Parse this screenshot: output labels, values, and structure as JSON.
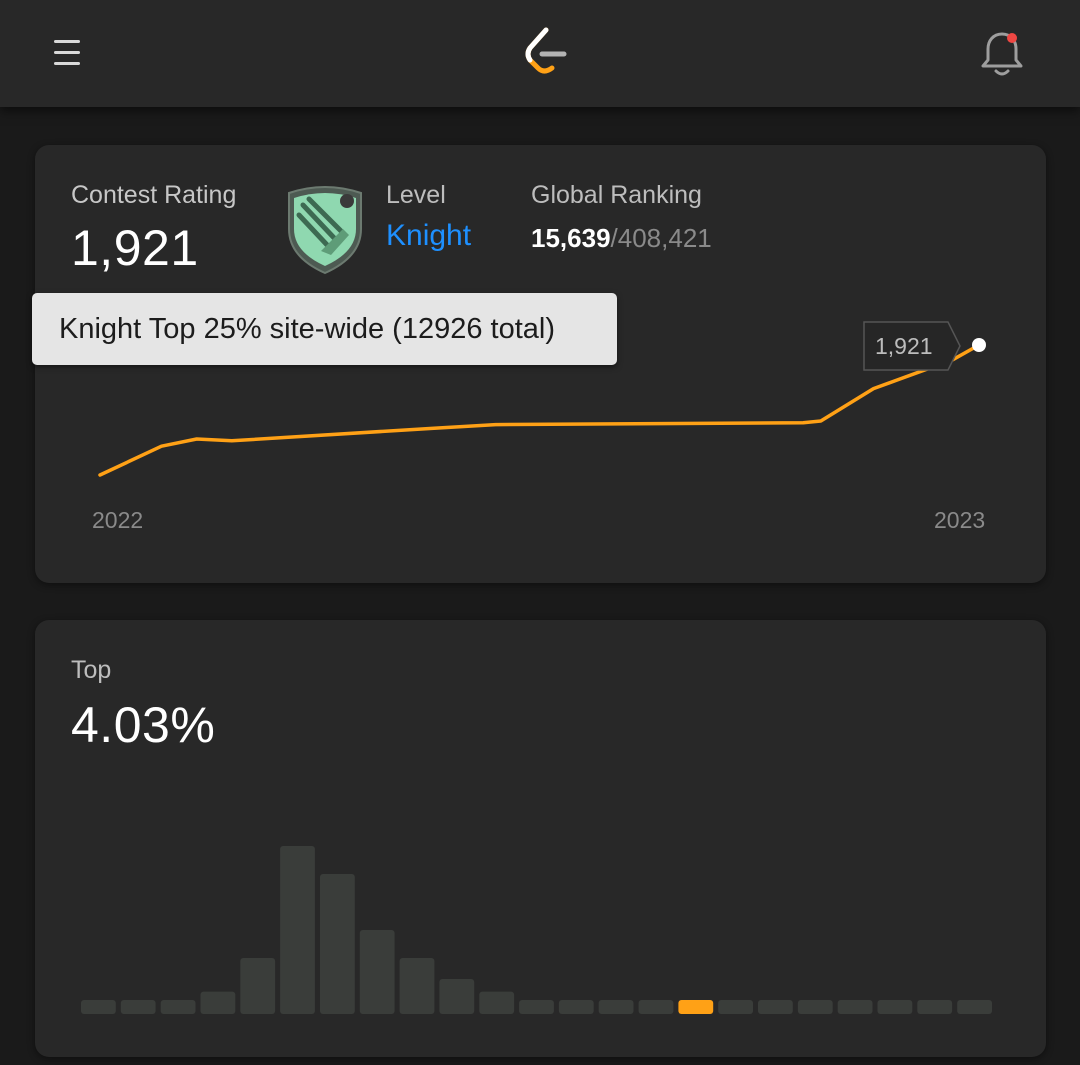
{
  "colors": {
    "accent": "#ffa116",
    "level": "#1e90ff",
    "bar_default": "#3a3d3a",
    "notification_dot": "#ef4743"
  },
  "header": {
    "menu_icon": "hamburger-menu-icon",
    "logo_icon": "leetcode-logo-icon",
    "bell_icon": "bell-icon"
  },
  "rating_card": {
    "rating_label": "Contest Rating",
    "rating_value": "1,921",
    "badge_icon": "knight-badge-icon",
    "level_label": "Level",
    "level_value": "Knight",
    "ranking_label": "Global Ranking",
    "ranking_value": "15,639",
    "ranking_separator": "/",
    "ranking_total": "408,421",
    "tooltip": "Knight Top 25% site-wide (12926 total)"
  },
  "chart_data": [
    {
      "type": "line",
      "x": [
        "2022-01",
        "2022-02",
        "2022-03",
        "2022-04",
        "2022-06",
        "2022-07",
        "2022-09",
        "2022-11",
        "2022-12",
        "2023-01",
        "2023-01"
      ],
      "y": [
        1560,
        1640,
        1660,
        1655,
        1690,
        1700,
        1705,
        1710,
        1800,
        1880,
        1921
      ],
      "x_tick_labels": [
        "2022",
        "2023"
      ],
      "grid": false,
      "current_point_label": "1,921",
      "current_point_value": 1921
    },
    {
      "type": "bar",
      "values": [
        1,
        1,
        1,
        1.6,
        4,
        12,
        10,
        6,
        4,
        2.5,
        1.6,
        1,
        1,
        1,
        1,
        1,
        1,
        1,
        1,
        1,
        1,
        1,
        1
      ],
      "highlight_index": 15
    }
  ],
  "top_card": {
    "label": "Top",
    "value": "4.03%"
  }
}
